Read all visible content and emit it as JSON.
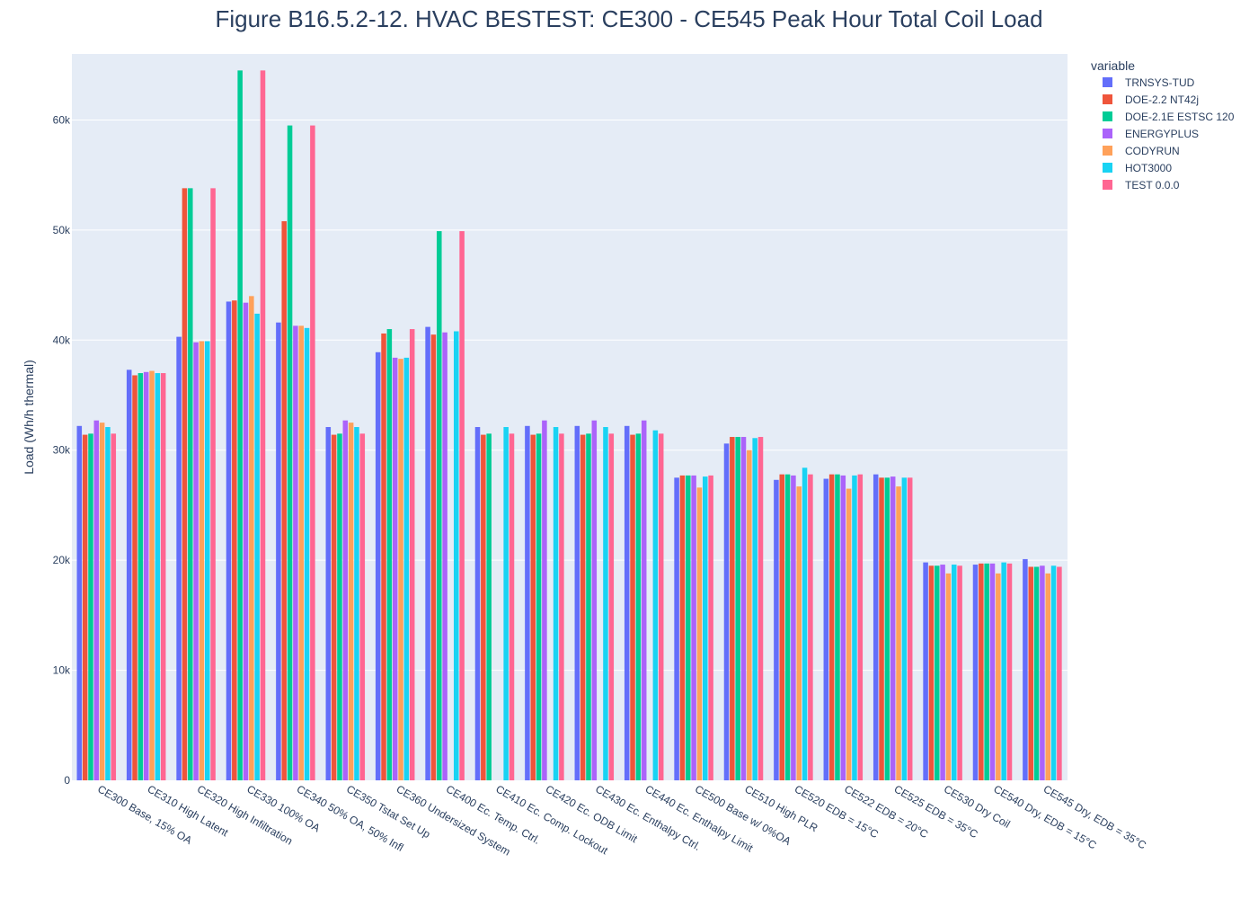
{
  "chart_data": {
    "type": "bar",
    "title": "Figure B16.5.2-12. HVAC BESTEST: CE300 - CE545 Peak Hour Total Coil Load",
    "xlabel": "",
    "ylabel": "Load (Wh/h thermal)",
    "ylim": [
      0,
      66000
    ],
    "y_ticks": [
      0,
      10000,
      20000,
      30000,
      40000,
      50000,
      60000
    ],
    "y_tick_labels": [
      "0",
      "10k",
      "20k",
      "30k",
      "40k",
      "50k",
      "60k"
    ],
    "grid": true,
    "legend_title": "variable",
    "legend_position": "top-right",
    "plot_bg": "#e5ecf6",
    "categories": [
      "CE300 Base, 15% OA",
      "CE310 High Latent",
      "CE320 High Infiltration",
      "CE330 100% OA",
      "CE340 50% OA, 50% Infl",
      "CE350 Tstat Set Up",
      "CE360 Undersized System",
      "CE400 Ec. Temp. Ctrl.",
      "CE410 Ec. Comp. Lockout",
      "CE420 Ec. ODB Limit",
      "CE430 Ec. Enthalpy Ctrl.",
      "CE440 Ec. Enthalpy Limit",
      "CE500 Base w/ 0%OA",
      "CE510 High PLR",
      "CE520 EDB = 15°C",
      "CE522 EDB = 20°C",
      "CE525 EDB = 35°C",
      "CE530 Dry Coil",
      "CE540 Dry, EDB = 15°C",
      "CE545 Dry, EDB = 35°C"
    ],
    "series": [
      {
        "name": "TRNSYS-TUD",
        "color": "#636efa",
        "values": [
          32200,
          37300,
          40300,
          43500,
          41600,
          32100,
          38900,
          41200,
          32100,
          32200,
          32200,
          32200,
          27500,
          30600,
          27300,
          27400,
          27800,
          19800,
          19600,
          20100
        ]
      },
      {
        "name": "DOE-2.2 NT42j",
        "color": "#ef553b",
        "values": [
          31400,
          36800,
          53800,
          43600,
          50800,
          31400,
          40600,
          40500,
          31400,
          31400,
          31400,
          31400,
          27700,
          31200,
          27800,
          27800,
          27500,
          19500,
          19700,
          19400
        ]
      },
      {
        "name": "DOE-2.1E ESTSC 120",
        "color": "#00cc96",
        "values": [
          31500,
          37000,
          53800,
          64500,
          59500,
          31500,
          41000,
          49900,
          31500,
          31500,
          31500,
          31500,
          27700,
          31200,
          27800,
          27800,
          27500,
          19500,
          19700,
          19400
        ]
      },
      {
        "name": "ENERGYPLUS",
        "color": "#ab63fa",
        "values": [
          32700,
          37100,
          39800,
          43400,
          41300,
          32700,
          38400,
          40700,
          null,
          32700,
          32700,
          32700,
          27700,
          31200,
          27700,
          27700,
          27600,
          19600,
          19700,
          19500
        ]
      },
      {
        "name": "CODYRUN",
        "color": "#ffa15a",
        "values": [
          32500,
          37200,
          39900,
          44000,
          41300,
          32500,
          38300,
          null,
          null,
          null,
          null,
          null,
          26600,
          30000,
          26700,
          26500,
          26700,
          18800,
          18800,
          18800
        ]
      },
      {
        "name": "HOT3000",
        "color": "#19d3f3",
        "values": [
          32100,
          37000,
          39900,
          42400,
          41100,
          32100,
          38400,
          40800,
          32100,
          32100,
          32100,
          31800,
          27600,
          31100,
          28400,
          27700,
          27500,
          19600,
          19800,
          19500
        ]
      },
      {
        "name": "TEST 0.0.0",
        "color": "#ff6692",
        "values": [
          31500,
          37000,
          53800,
          64500,
          59500,
          31500,
          41000,
          49900,
          31500,
          31500,
          31500,
          31500,
          27700,
          31200,
          27800,
          27800,
          27500,
          19500,
          19700,
          19400
        ]
      }
    ]
  }
}
